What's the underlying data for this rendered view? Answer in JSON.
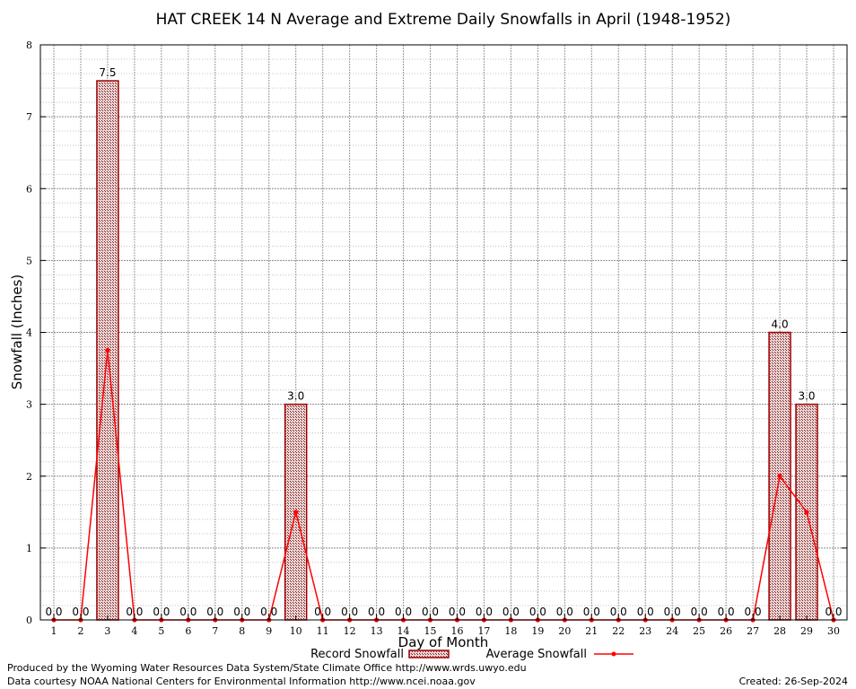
{
  "chart_data": {
    "type": "bar",
    "title": "HAT CREEK 14 N Average and Extreme Daily Snowfalls in April (1948-1952)",
    "xlabel": "Day of Month",
    "ylabel": "Snowfall (Inches)",
    "ylim": [
      0,
      8
    ],
    "yticks": [
      "0",
      "1",
      "2",
      "3",
      "4",
      "5",
      "6",
      "7",
      "8"
    ],
    "categories": [
      "1",
      "2",
      "3",
      "4",
      "5",
      "6",
      "7",
      "8",
      "9",
      "10",
      "11",
      "12",
      "13",
      "14",
      "15",
      "16",
      "17",
      "18",
      "19",
      "20",
      "21",
      "22",
      "23",
      "24",
      "25",
      "26",
      "27",
      "28",
      "29",
      "30"
    ],
    "grid": true,
    "legend_placement": "bottom-center",
    "series": [
      {
        "name": "Record Snowfall",
        "type": "bar",
        "color": "#a00000",
        "values": [
          0,
          0,
          7.5,
          0,
          0,
          0,
          0,
          0,
          0,
          3.0,
          0,
          0,
          0,
          0,
          0,
          0,
          0,
          0,
          0,
          0,
          0,
          0,
          0,
          0,
          0,
          0,
          0,
          4.0,
          3.0,
          0
        ],
        "labels": [
          "0.0",
          "0.0",
          "7.5",
          "0.0",
          "0.0",
          "0.0",
          "0.0",
          "0.0",
          "0.0",
          "3.0",
          "0.0",
          "0.0",
          "0.0",
          "0.0",
          "0.0",
          "0.0",
          "0.0",
          "0.0",
          "0.0",
          "0.0",
          "0.0",
          "0.0",
          "0.0",
          "0.0",
          "0.0",
          "0.0",
          "0.0",
          "4.0",
          "3.0",
          "0.0"
        ]
      },
      {
        "name": "Average Snowfall",
        "type": "line",
        "color": "#ff0000",
        "values": [
          0,
          0,
          3.75,
          0,
          0,
          0,
          0,
          0,
          0,
          1.5,
          0,
          0,
          0,
          0,
          0,
          0,
          0,
          0,
          0,
          0,
          0,
          0,
          0,
          0,
          0,
          0,
          0,
          2.0,
          1.5,
          0
        ]
      }
    ]
  },
  "footer": {
    "produced_by": "Produced by the Wyoming Water Resources Data System/State Climate Office http://www.wrds.uwyo.edu",
    "courtesy": "Data courtesy NOAA National Centers for Environmental Information http://www.ncei.noaa.gov",
    "created": "Created: 26-Sep-2024"
  }
}
